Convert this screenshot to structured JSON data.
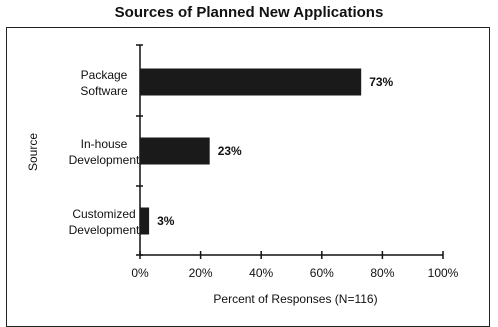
{
  "chart_data": {
    "type": "bar",
    "orientation": "horizontal",
    "title": "Sources of Planned New Applications",
    "xlabel": "Percent of Responses (N=116)",
    "ylabel": "Source",
    "categories": [
      [
        "Package",
        "Software"
      ],
      [
        "In-house",
        "Development"
      ],
      [
        "Customized",
        "Development"
      ]
    ],
    "values": [
      73,
      23,
      3
    ],
    "value_labels": [
      "73%",
      "23%",
      "3%"
    ],
    "xlim": [
      0,
      100
    ],
    "xticks": [
      0,
      20,
      40,
      60,
      80,
      100
    ],
    "xtick_labels": [
      "0%",
      "20%",
      "40%",
      "60%",
      "80%",
      "100%"
    ],
    "grid": false,
    "bar_color": "#1a1a1a"
  }
}
